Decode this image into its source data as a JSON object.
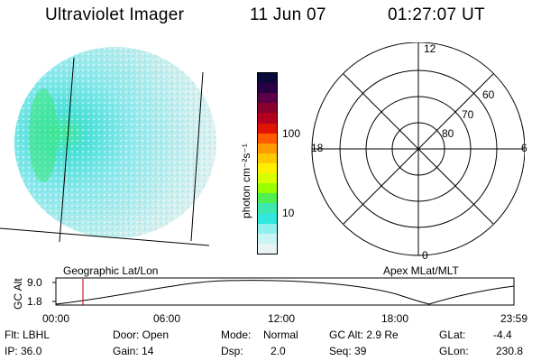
{
  "header": {
    "instrument": "Ultraviolet Imager",
    "date": "11 Jun 07",
    "time": "01:27:07 UT"
  },
  "image_panel": {
    "label": "Geographic Lat/Lon"
  },
  "colorbar": {
    "unit_label": "photon cm⁻²s⁻¹",
    "ticks": [
      "100",
      "10"
    ],
    "colors": [
      "#0a0a3a",
      "#2a0044",
      "#5a0046",
      "#880030",
      "#b4001e",
      "#e01400",
      "#ff5a00",
      "#ff9a00",
      "#ffc800",
      "#fff000",
      "#d8ff00",
      "#9cff00",
      "#50f050",
      "#3ce8b0",
      "#30e8e0",
      "#90f0f0",
      "#c8f4f4",
      "#e8f4f4"
    ]
  },
  "polar_panel": {
    "label": "Apex MLat/MLT",
    "mlt_labels": {
      "top": "12",
      "left": "18",
      "right": "6",
      "bottom": "0"
    },
    "lat_labels": [
      "60",
      "70",
      "80"
    ]
  },
  "altitude_plot": {
    "ylabel": "GC Alt",
    "yticks": [
      "9.0",
      "1.8"
    ],
    "xticks": [
      "00:00",
      "06:00",
      "12:00",
      "18:00",
      "23:59"
    ],
    "marker_color": "#c00000"
  },
  "status": {
    "flt": "Flt: LBHL",
    "ip": "IP: 36.0",
    "door": "Door: Open",
    "gain": "Gain: 14",
    "mode_label": "Mode:",
    "mode_value": "Normal",
    "dsp_label": "Dsp:",
    "dsp_value": "2.0",
    "gcalt": "GC Alt: 2.9 Re",
    "seq": "Seq: 39",
    "glat_label": "GLat:",
    "glat_value": "-4.4",
    "glon_label": "GLon:",
    "glon_value": "230.8"
  }
}
